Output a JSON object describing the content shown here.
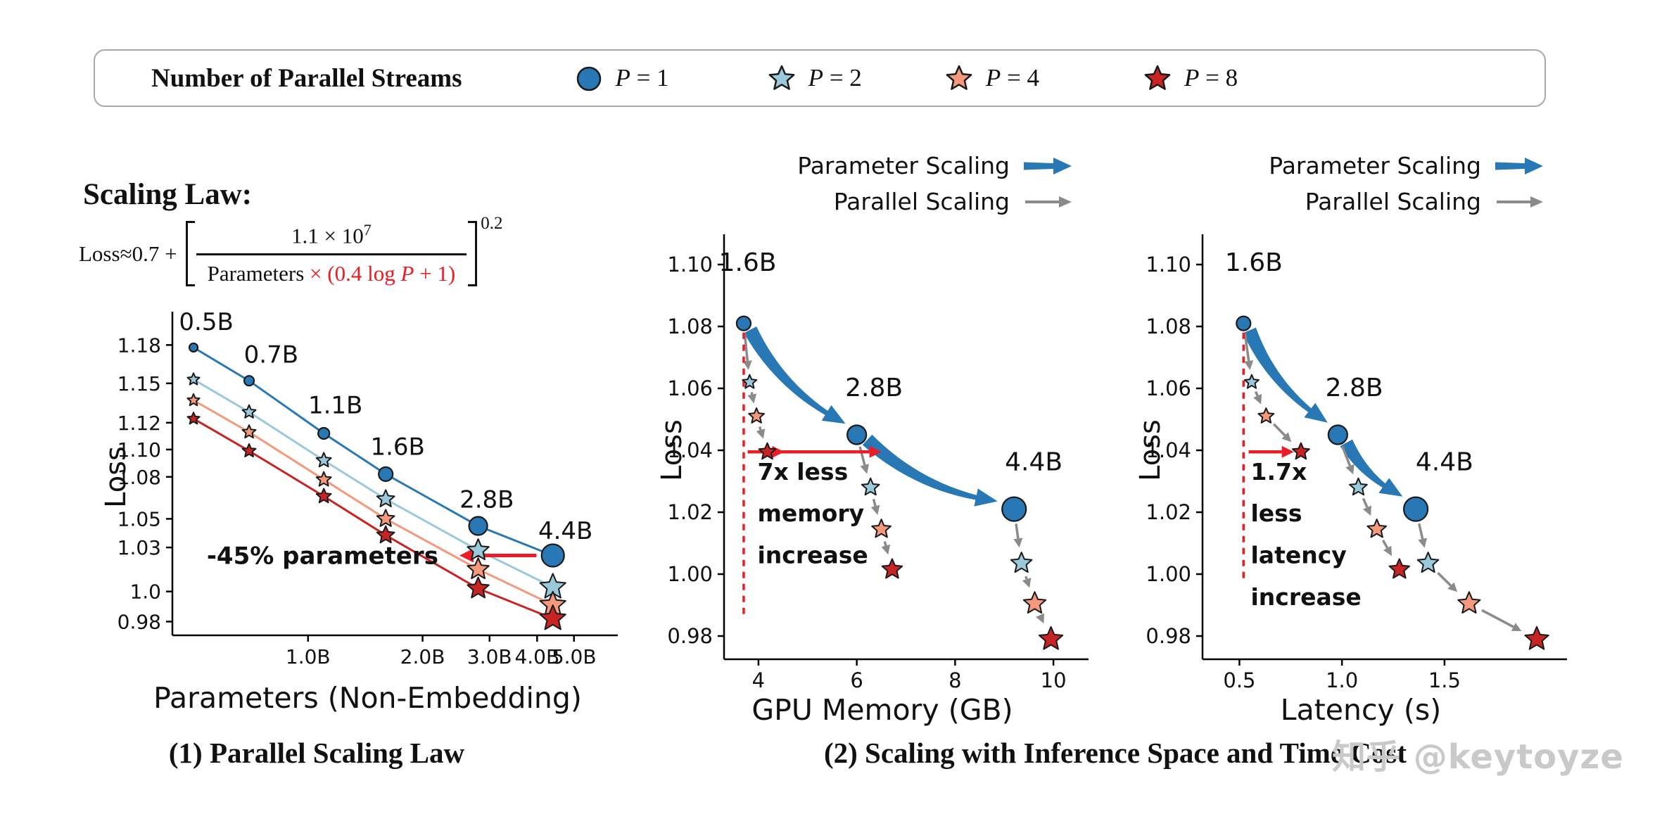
{
  "legend_bar": {
    "title": "Number of Parallel Streams",
    "items": [
      {
        "var": "P",
        "rest": " = 1",
        "marker": "circle",
        "color_key": "p1"
      },
      {
        "var": "P",
        "rest": " = 2",
        "marker": "star",
        "color_key": "p2"
      },
      {
        "var": "P",
        "rest": " = 4",
        "marker": "star",
        "color_key": "p4"
      },
      {
        "var": "P",
        "rest": " = 8",
        "marker": "star",
        "color_key": "p8"
      }
    ]
  },
  "scaling_law": {
    "heading": "Scaling Law:",
    "formula": {
      "lhs": "Loss ",
      "approx": "≈",
      "const": " 0.7 + ",
      "numerator_base": "1.1 × 10",
      "numerator_exp": "7",
      "denominator_black": "Parameters ",
      "denominator_red_pre": "× (0.4 log ",
      "denominator_red_var": "P",
      "denominator_red_post": " + 1)",
      "exponent": "0.2"
    }
  },
  "captions": {
    "panel1": "(1) Parallel Scaling Law",
    "panel2": "(2) Scaling with Inference Space and Time Cost"
  },
  "watermark": "知乎 @keytoyze",
  "colors": {
    "p1": "#2878b5",
    "p2": "#9ac9db",
    "p4": "#f4997c",
    "p8": "#c82423",
    "param_arrow": "#2878b5",
    "parallel_arrow": "#8a8a8a",
    "annotation_red": "#ed1c24",
    "axis": "#000000",
    "legend_border": "#a9a9a9",
    "watermark_gray": "#c9c9c9"
  },
  "chart_data": [
    {
      "type": "line",
      "name": "parallel-scaling-law",
      "xlabel": "Parameters (Non-Embedding)",
      "ylabel": "Loss",
      "xscale": "log",
      "yscale": "log",
      "xlim": [
        0.44,
        6.3
      ],
      "ylim": [
        0.971,
        1.201
      ],
      "xticks": [
        {
          "v": 1.0,
          "label": "1.0B"
        },
        {
          "v": 2.0,
          "label": "2.0B"
        },
        {
          "v": 3.0,
          "label": "3.0B"
        },
        {
          "v": 4.0,
          "label": "4.0B"
        },
        {
          "v": 5.0,
          "label": "5.0B"
        }
      ],
      "yticks": [
        {
          "v": 1.18,
          "label": "1.18"
        },
        {
          "v": 1.15,
          "label": "1.15"
        },
        {
          "v": 1.12,
          "label": "1.12"
        },
        {
          "v": 1.1,
          "label": "1.10"
        },
        {
          "v": 1.08,
          "label": "1.08"
        },
        {
          "v": 1.05,
          "label": "1.05"
        },
        {
          "v": 1.03,
          "label": "1.03"
        },
        {
          "v": 1.0,
          "label": "1.0"
        },
        {
          "v": 0.98,
          "label": "0.98"
        }
      ],
      "x_values_billions": [
        0.5,
        0.7,
        1.1,
        1.6,
        2.8,
        4.4
      ],
      "series": [
        {
          "name": "P = 1",
          "marker": "circle",
          "color_key": "p1",
          "losses": [
            1.178,
            1.152,
            1.112,
            1.082,
            1.045,
            1.0245
          ],
          "marker_sizes": [
            6,
            7,
            8,
            10,
            13,
            16
          ]
        },
        {
          "name": "P = 2",
          "marker": "star",
          "color_key": "p2",
          "losses": [
            1.153,
            1.128,
            1.092,
            1.064,
            1.028,
            1.003
          ],
          "marker_sizes": [
            9,
            10,
            11,
            13,
            16,
            19
          ]
        },
        {
          "name": "P = 4",
          "marker": "star",
          "color_key": "p4",
          "losses": [
            1.137,
            1.113,
            1.078,
            1.05,
            1.015,
            0.991
          ],
          "marker_sizes": [
            9,
            10,
            11,
            13,
            16,
            19
          ]
        },
        {
          "name": "P = 8",
          "marker": "star",
          "color_key": "p8",
          "losses": [
            1.123,
            1.099,
            1.066,
            1.0385,
            1.002,
            0.982
          ],
          "marker_sizes": [
            9,
            10,
            11,
            13,
            16,
            19
          ]
        }
      ],
      "point_labels": [
        {
          "text": "0.5B",
          "x": 0.54,
          "y": 1.192
        },
        {
          "text": "0.7B",
          "x": 0.8,
          "y": 1.166
        },
        {
          "text": "1.1B",
          "x": 1.18,
          "y": 1.127
        },
        {
          "text": "1.6B",
          "x": 1.72,
          "y": 1.096
        },
        {
          "text": "2.8B",
          "x": 2.95,
          "y": 1.058
        },
        {
          "text": "4.4B",
          "x": 4.75,
          "y": 1.036
        }
      ],
      "annotation": {
        "text": "-45% parameters",
        "y": 1.0245,
        "x_from": 4.3,
        "x_to": 2.5
      }
    },
    {
      "type": "scatter",
      "name": "memory-scaling",
      "xlabel": "GPU Memory (GB)",
      "ylabel": "Loss",
      "xscale": "linear",
      "yscale": "linear",
      "xlim": [
        3.3,
        10.6
      ],
      "ylim": [
        0.9725,
        1.1075
      ],
      "xticks": [
        {
          "v": 4,
          "label": "4"
        },
        {
          "v": 6,
          "label": "6"
        },
        {
          "v": 8,
          "label": "8"
        },
        {
          "v": 10,
          "label": "10"
        }
      ],
      "yticks": [
        {
          "v": 1.1,
          "label": "1.10"
        },
        {
          "v": 1.08,
          "label": "1.08"
        },
        {
          "v": 1.06,
          "label": "1.06"
        },
        {
          "v": 1.04,
          "label": "1.04"
        },
        {
          "v": 1.02,
          "label": "1.02"
        },
        {
          "v": 1.0,
          "label": "1.00"
        },
        {
          "v": 0.98,
          "label": "0.98"
        }
      ],
      "legend": {
        "items": [
          {
            "label": "Parameter Scaling"
          },
          {
            "label": "Parallel Scaling"
          }
        ]
      },
      "stream_labels": [
        "P = 1",
        "P = 2",
        "P = 4",
        "P = 8"
      ],
      "clusters": [
        {
          "label": "1.6B",
          "label_pos": [
            3.78,
            1.098
          ],
          "points": [
            [
              3.7,
              1.081
            ],
            [
              3.82,
              1.062
            ],
            [
              3.96,
              1.051
            ],
            [
              4.18,
              1.0395
            ]
          ]
        },
        {
          "label": "2.8B",
          "label_pos": [
            6.35,
            1.0575
          ],
          "points": [
            [
              6.0,
              1.045
            ],
            [
              6.28,
              1.028
            ],
            [
              6.5,
              1.0145
            ],
            [
              6.72,
              1.0015
            ]
          ]
        },
        {
          "label": "4.4B",
          "label_pos": [
            9.6,
            1.0335
          ],
          "points": [
            [
              9.2,
              1.021
            ],
            [
              9.35,
              1.0035
            ],
            [
              9.62,
              0.9905
            ],
            [
              9.95,
              0.979
            ]
          ]
        }
      ],
      "red_annotation": {
        "dashed_x": 3.7,
        "dashed_y": [
          1.078,
          0.9855
        ],
        "arrow_y": 1.0395,
        "arrow_x": [
          3.78,
          6.5
        ],
        "mid_head_x": 4.38,
        "text_lines": [
          "7x less",
          "memory",
          "increase"
        ],
        "text_x": 3.98,
        "text_y": 1.0305,
        "line_step": 0.0135
      }
    },
    {
      "type": "scatter",
      "name": "latency-scaling",
      "xlabel": "Latency (s)",
      "ylabel": "Loss",
      "xscale": "linear",
      "yscale": "linear",
      "xlim": [
        0.32,
        2.07
      ],
      "ylim": [
        0.9725,
        1.1075
      ],
      "xticks": [
        {
          "v": 0.5,
          "label": "0.5"
        },
        {
          "v": 1.0,
          "label": "1.0"
        },
        {
          "v": 1.5,
          "label": "1.5"
        }
      ],
      "yticks": [
        {
          "v": 1.1,
          "label": "1.10"
        },
        {
          "v": 1.08,
          "label": "1.08"
        },
        {
          "v": 1.06,
          "label": "1.06"
        },
        {
          "v": 1.04,
          "label": "1.04"
        },
        {
          "v": 1.02,
          "label": "1.02"
        },
        {
          "v": 1.0,
          "label": "1.00"
        },
        {
          "v": 0.98,
          "label": "0.98"
        }
      ],
      "legend": {
        "items": [
          {
            "label": "Parameter Scaling"
          },
          {
            "label": "Parallel Scaling"
          }
        ]
      },
      "stream_labels": [
        "P = 1",
        "P = 2",
        "P = 4",
        "P = 8"
      ],
      "clusters": [
        {
          "label": "1.6B",
          "label_pos": [
            0.57,
            1.098
          ],
          "points": [
            [
              0.52,
              1.081
            ],
            [
              0.56,
              1.062
            ],
            [
              0.63,
              1.051
            ],
            [
              0.8,
              1.0395
            ]
          ]
        },
        {
          "label": "2.8B",
          "label_pos": [
            1.06,
            1.0575
          ],
          "points": [
            [
              0.98,
              1.045
            ],
            [
              1.08,
              1.028
            ],
            [
              1.17,
              1.0145
            ],
            [
              1.28,
              1.0015
            ]
          ]
        },
        {
          "label": "4.4B",
          "label_pos": [
            1.5,
            1.0335
          ],
          "points": [
            [
              1.36,
              1.021
            ],
            [
              1.42,
              1.0035
            ],
            [
              1.62,
              0.9905
            ],
            [
              1.95,
              0.979
            ]
          ]
        }
      ],
      "red_annotation": {
        "dashed_x": 0.52,
        "dashed_y": [
          1.078,
          0.998
        ],
        "arrow_y": 1.0395,
        "arrow_x": [
          0.545,
          0.765
        ],
        "text_lines": [
          "1.7x",
          "less",
          "latency",
          "increase"
        ],
        "text_x": 0.555,
        "text_y": 1.0305,
        "line_step": 0.0135
      }
    }
  ]
}
